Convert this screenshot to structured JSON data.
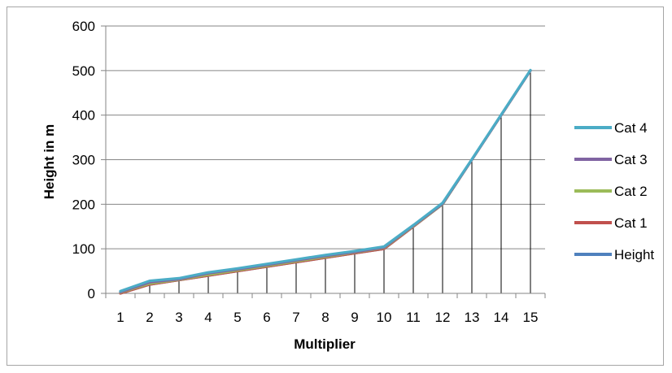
{
  "chart_data": {
    "type": "line",
    "title": "",
    "xlabel": "Multiplier",
    "ylabel": "Height in m",
    "x": [
      1,
      2,
      3,
      4,
      5,
      6,
      7,
      8,
      9,
      10,
      11,
      12,
      13,
      14,
      15
    ],
    "ylim": [
      0,
      600
    ],
    "yticks": [
      0,
      100,
      200,
      300,
      400,
      500,
      600
    ],
    "grid": "horizontal",
    "drop_lines": true,
    "legend_position": "right",
    "series": [
      {
        "name": "Height",
        "color": "#4f81bd",
        "values": [
          0,
          20,
          30,
          40,
          50,
          60,
          70,
          80,
          90,
          100,
          150,
          200,
          300,
          400,
          500
        ]
      },
      {
        "name": "Cat 1",
        "color": "#c0504d",
        "values": [
          0,
          20,
          30,
          40,
          50,
          60,
          70,
          80,
          90,
          100,
          150,
          200,
          300,
          400,
          500
        ]
      },
      {
        "name": "Cat 2",
        "color": "#9bbb59",
        "values": [
          2,
          22,
          31,
          42,
          52,
          62,
          72,
          82,
          92,
          102,
          151,
          200,
          300,
          400,
          500
        ]
      },
      {
        "name": "Cat 3",
        "color": "#8064a2",
        "values": [
          3,
          25,
          32,
          45,
          54,
          64,
          74,
          84,
          93,
          103,
          152,
          201,
          300,
          400,
          500
        ]
      },
      {
        "name": "Cat 4",
        "color": "#4bacc6",
        "values": [
          5,
          28,
          34,
          47,
          56,
          66,
          76,
          86,
          95,
          105,
          153,
          203,
          301,
          401,
          501
        ]
      }
    ]
  }
}
